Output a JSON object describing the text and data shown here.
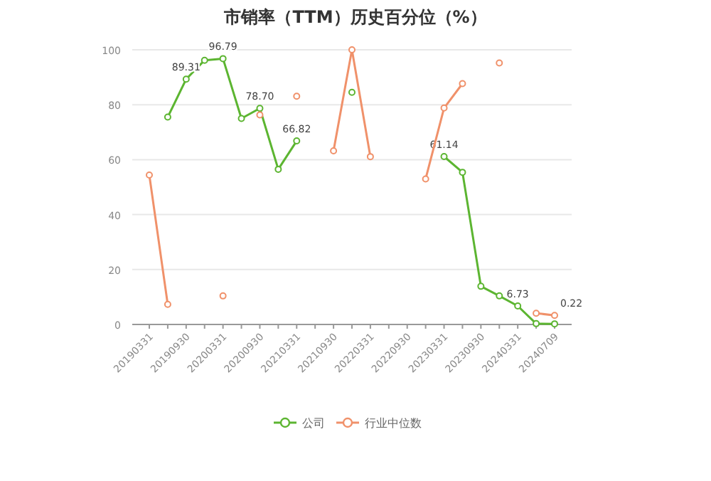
{
  "chart_data": {
    "type": "line",
    "title": "市销率（TTM）历史百分位（%）",
    "categories": [
      "20190331",
      null,
      "20190930",
      null,
      "20200331",
      null,
      "20200930",
      null,
      "20210331",
      null,
      "20210930",
      null,
      "20220331",
      null,
      "20220930",
      null,
      "20230331",
      null,
      "20230930",
      null,
      "20240331",
      null,
      "20240709"
    ],
    "series": [
      {
        "name": "公司",
        "color": "#5cb531",
        "values": [
          null,
          75.5,
          89.31,
          96.2,
          96.79,
          75.0,
          78.7,
          56.5,
          66.82,
          null,
          null,
          84.5,
          null,
          null,
          null,
          null,
          61.14,
          55.4,
          13.9,
          10.4,
          6.73,
          0.3,
          0.22
        ],
        "value_labels": [
          null,
          null,
          "89.31",
          null,
          "96.79",
          null,
          "78.70",
          null,
          "66.82",
          null,
          null,
          null,
          null,
          null,
          null,
          null,
          "61.14",
          null,
          null,
          null,
          "6.73",
          null,
          "0.22"
        ]
      },
      {
        "name": "行业中位数",
        "color": "#f0916a",
        "values": [
          54.4,
          7.3,
          null,
          null,
          10.4,
          null,
          76.3,
          null,
          83.1,
          null,
          63.2,
          100,
          61.1,
          null,
          null,
          53,
          78.8,
          87.7,
          null,
          95.2,
          null,
          4.1,
          3.3
        ]
      }
    ],
    "ylim": [
      0,
      100
    ],
    "yticks": [
      0,
      20,
      40,
      60,
      80,
      100
    ],
    "grid": "y",
    "legend": "bottom",
    "marker": "circle",
    "line_style": "solid"
  }
}
